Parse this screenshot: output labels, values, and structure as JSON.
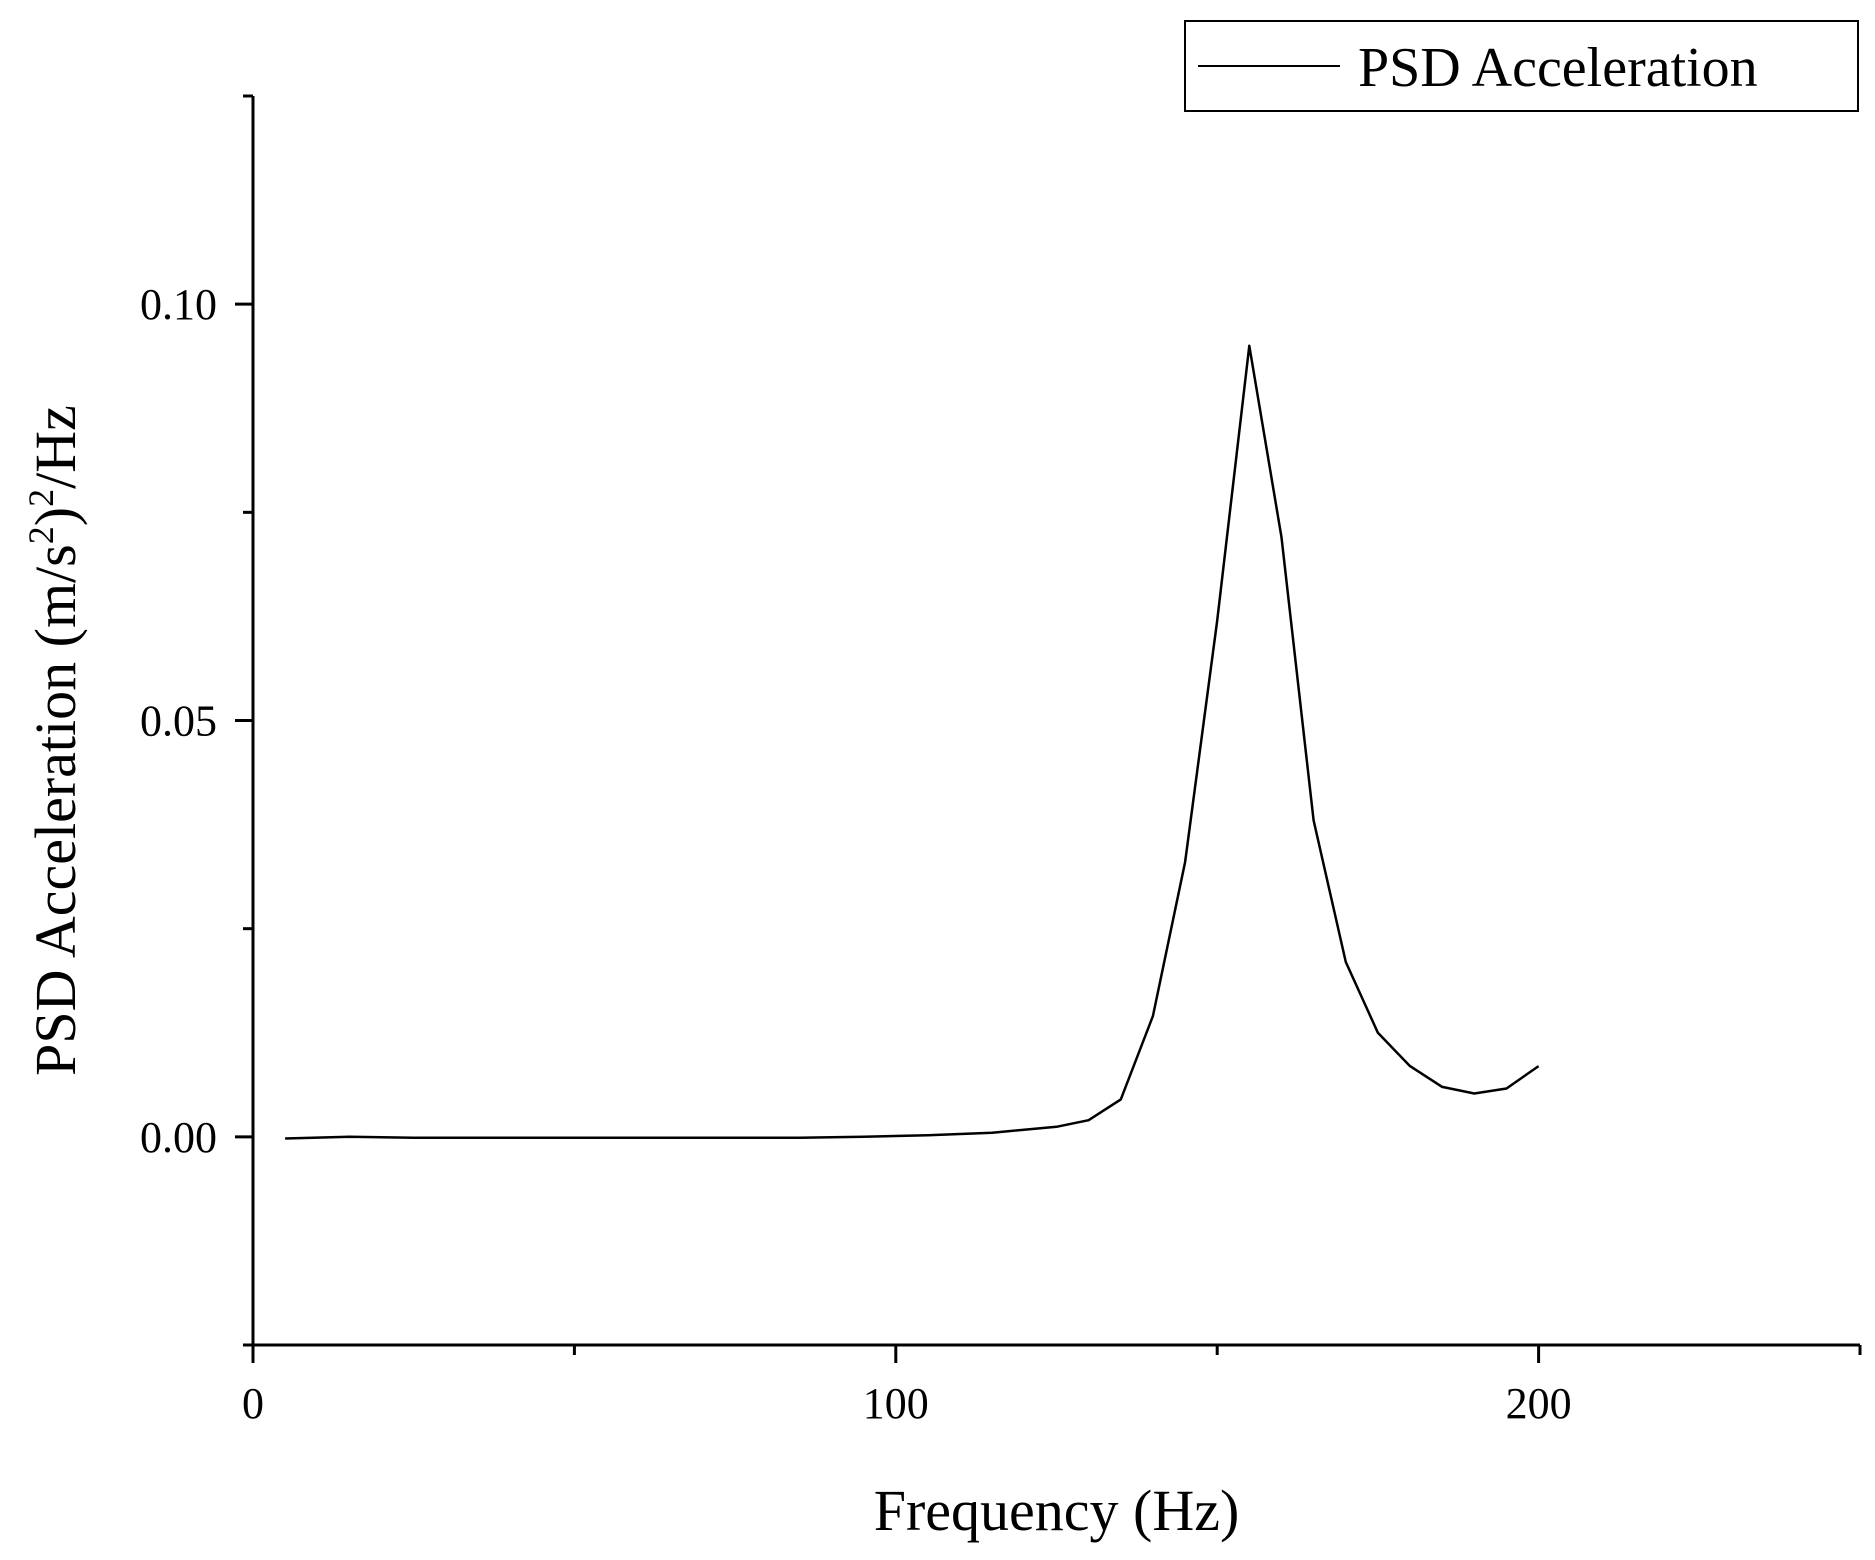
{
  "chart_data": {
    "type": "line",
    "title": "",
    "xlabel": "Frequency (Hz)",
    "ylabel_parts": [
      "PSD Acceleration (m/s",
      "2",
      ")",
      "2",
      "/Hz"
    ],
    "xlim": [
      0,
      250
    ],
    "ylim": [
      -0.025,
      0.125
    ],
    "x_ticks": [
      {
        "value": 0,
        "label": "0"
      },
      {
        "value": 100,
        "label": "100"
      },
      {
        "value": 200,
        "label": "200"
      }
    ],
    "x_minor_ticks": [
      50,
      150,
      250
    ],
    "y_ticks": [
      {
        "value": 0.0,
        "label": "0.00"
      },
      {
        "value": 0.05,
        "label": "0.05"
      },
      {
        "value": 0.1,
        "label": "0.10"
      }
    ],
    "y_minor_ticks": [
      -0.025,
      0.025,
      0.075,
      0.125
    ],
    "grid": false,
    "legend": {
      "position": "top-right",
      "entries": [
        "PSD Acceleration"
      ]
    },
    "series": [
      {
        "name": "PSD Acceleration",
        "color": "#000000",
        "x": [
          5,
          15,
          25,
          35,
          45,
          55,
          65,
          75,
          85,
          95,
          105,
          115,
          125,
          130,
          135,
          140,
          145,
          150,
          155,
          160,
          165,
          170,
          175,
          180,
          185,
          190,
          195,
          200
        ],
        "y": [
          -0.0002,
          0.0,
          -0.0001,
          -0.0001,
          -0.0001,
          -0.0001,
          -0.0001,
          -0.0001,
          -0.0001,
          0.0,
          0.0002,
          0.0005,
          0.0012,
          0.002,
          0.0045,
          0.0145,
          0.033,
          0.062,
          0.095,
          0.072,
          0.038,
          0.021,
          0.0125,
          0.0085,
          0.006,
          0.0052,
          0.0058,
          0.0085
        ]
      }
    ]
  }
}
